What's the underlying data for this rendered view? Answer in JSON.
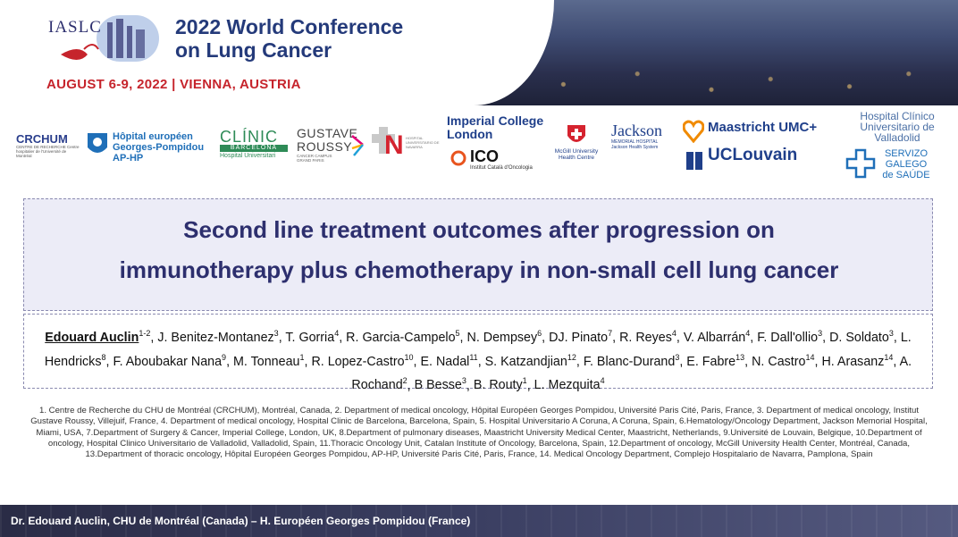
{
  "header": {
    "org": "IASLC",
    "conference_line1": "2022 World Conference",
    "conference_line2": "on Lung Cancer",
    "date_place": "AUGUST 6-9, 2022 | VIENNA, AUSTRIA"
  },
  "logos": {
    "chum_main": "CRCHUM",
    "chum_sub": "CENTRE DE RECHERCHE Centre hospitalier de l'Université de Montréal",
    "hegp_1": "Hôpital européen",
    "hegp_2": "Georges-Pompidou",
    "hegp_3": "AP-HP",
    "clinic_main": "CLÍNIC",
    "clinic_band": "BARCELONA",
    "clinic_sub": "Hospital Universitari",
    "gustave_1": "GUSTAVE",
    "gustave_2": "ROUSSY",
    "gustave_sub": "CANCER CAMPUS GRAND PARIS",
    "navarra_main": "N",
    "navarra_sub": "HOSPITAL UNIVERSITARIO DE NAVARRA",
    "imperial_1": "Imperial College",
    "imperial_2": "London",
    "ico_main": "ICO",
    "ico_sub": "Institut Català d'Oncologia",
    "mcgill_1": "McGill University",
    "mcgill_2": "Health Centre",
    "jackson_main": "Jackson",
    "jackson_sub1": "MEMORIAL HOSPITAL",
    "jackson_sub2": "Jackson Health System",
    "maastricht": "Maastricht UMC+",
    "uclouvain": "UCLouvain",
    "valladolid_1": "Hospital Clínico",
    "valladolid_2": "Universitario de",
    "valladolid_3": "Valladolid",
    "galego_1": "SERVIZO",
    "galego_2": "GALEGO",
    "galego_3": "de SAÚDE"
  },
  "title_line1": "Second line treatment outcomes after progression on",
  "title_line2": "immunotherapy plus chemotherapy in non-small cell lung cancer",
  "first_author": "Edouard Auclin",
  "authors": [
    {
      "name": "Edouard Auclin",
      "aff": "1-2"
    },
    {
      "name": "J. Benitez-Montanez",
      "aff": "3"
    },
    {
      "name": "T. Gorria",
      "aff": "4"
    },
    {
      "name": "R. Garcia-Campelo",
      "aff": "5"
    },
    {
      "name": "N. Dempsey",
      "aff": "6"
    },
    {
      "name": "DJ. Pinato",
      "aff": "7"
    },
    {
      "name": "R. Reyes",
      "aff": "4"
    },
    {
      "name": "V. Albarrán",
      "aff": "4"
    },
    {
      "name": "F. Dall'ollio",
      "aff": "3"
    },
    {
      "name": "D. Soldato",
      "aff": "3"
    },
    {
      "name": "L. Hendricks",
      "aff": "8"
    },
    {
      "name": "F. Aboubakar Nana",
      "aff": "9"
    },
    {
      "name": "M. Tonneau",
      "aff": "1"
    },
    {
      "name": "R. Lopez-Castro",
      "aff": "10"
    },
    {
      "name": "E. Nadal",
      "aff": "11"
    },
    {
      "name": "S. Katzandjian",
      "aff": "12"
    },
    {
      "name": "F. Blanc-Durand",
      "aff": "3"
    },
    {
      "name": "E. Fabre",
      "aff": "13"
    },
    {
      "name": "N. Castro",
      "aff": "14"
    },
    {
      "name": "H. Arasanz",
      "aff": "14"
    },
    {
      "name": "A. Rochand",
      "aff": "2"
    },
    {
      "name": "B Besse",
      "aff": "3"
    },
    {
      "name": "B. Routy",
      "aff": "1"
    },
    {
      "name": "L. Mezquita",
      "aff": "4"
    }
  ],
  "affiliations": "1. Centre de Recherche du CHU de Montréal (CRCHUM), Montréal, Canada, 2. Department of medical oncology, Hôpital Européen Georges Pompidou, Université Paris Cité, Paris, France, 3. Department of medical oncology, Institut Gustave Roussy, Villejuif, France, 4. Department of medical oncology, Hospital Clinic de Barcelona, Barcelona, Spain, 5. Hospital Universitario A Coruna, A Coruna, Spain, 6.Hematology/Oncology Department, Jackson Memorial Hospital, Miami, USA, 7.Department of Surgery & Cancer, Imperial College, London, UK, 8.Department of pulmonary diseases, Maastricht University Medical Center, Maastricht, Netherlands, 9.Université de Louvain, Belgique, 10.Department of oncology, Hospital Clinico Universitario de Valladolid, Valladolid, Spain, 11.Thoracic Oncology Unit, Catalan Institute of Oncology, Barcelona, Spain, 12.Department of oncology, McGill University Health Center, Montréal, Canada, 13.Department of thoracic oncology, Hôpital Européen Georges Pompidou, AP-HP, Université Paris Cité, Paris, France, 14. Medical Oncology Department, Complejo Hospitalario de Navarra, Pamplona, Spain",
  "footer": "Dr. Edouard Auclin, CHU de Montréal (Canada) – H. Européen Georges Pompidou (France)",
  "colors": {
    "navy": "#2d2f6e",
    "red": "#c6242c",
    "box_fill": "#ececf7"
  }
}
